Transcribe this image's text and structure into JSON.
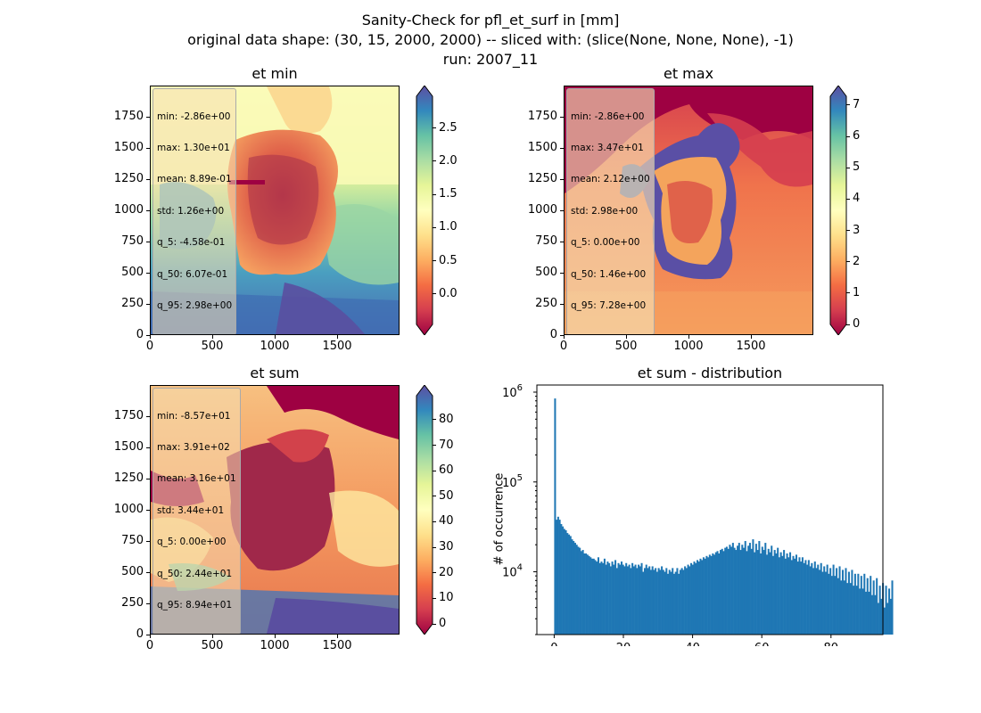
{
  "figure": {
    "title_line1": "Sanity-Check for pfl_et_surf in [mm]",
    "title_line2": "original data shape: (30, 15, 2000, 2000) -- sliced with: (slice(None, None, None), -1)",
    "title_line3": "run: 2007_11"
  },
  "panels": [
    {
      "title": "et min",
      "xticks": [
        "0",
        "500",
        "1000",
        "1500"
      ],
      "yticks": [
        "0",
        "250",
        "500",
        "750",
        "1000",
        "1250",
        "1500",
        "1750"
      ],
      "stats": [
        "min: -2.86e+00",
        "max: 1.30e+01",
        "mean: 8.89e-01",
        "std: 1.26e+00",
        "q_5: -4.58e-01",
        "q_50: 6.07e-01",
        "q_95: 2.98e+00"
      ],
      "cbar_ticks": [
        "0.0",
        "0.5",
        "1.0",
        "1.5",
        "2.0",
        "2.5"
      ]
    },
    {
      "title": "et max",
      "xticks": [
        "0",
        "500",
        "1000",
        "1500"
      ],
      "yticks": [
        "0",
        "250",
        "500",
        "750",
        "1000",
        "1250",
        "1500",
        "1750"
      ],
      "stats": [
        "min: -2.86e+00",
        "max: 3.47e+01",
        "mean: 2.12e+00",
        "std: 2.98e+00",
        "q_5: 0.00e+00",
        "q_50: 1.46e+00",
        "q_95: 7.28e+00"
      ],
      "cbar_ticks": [
        "0",
        "1",
        "2",
        "3",
        "4",
        "5",
        "6",
        "7"
      ]
    },
    {
      "title": "et sum",
      "xticks": [
        "0",
        "500",
        "1000",
        "1500"
      ],
      "yticks": [
        "0",
        "250",
        "500",
        "750",
        "1000",
        "1250",
        "1500",
        "1750"
      ],
      "stats": [
        "min: -8.57e+01",
        "max: 3.91e+02",
        "mean: 3.16e+01",
        "std: 3.44e+01",
        "q_5: 0.00e+00",
        "q_50: 2.44e+01",
        "q_95: 8.94e+01"
      ],
      "cbar_ticks": [
        "0",
        "10",
        "20",
        "30",
        "40",
        "50",
        "60",
        "70",
        "80"
      ]
    }
  ],
  "chart_data": [
    {
      "type": "heatmap",
      "title": "et min",
      "xlim": [
        0,
        2000
      ],
      "ylim": [
        0,
        2000
      ],
      "colorbar_range": [
        -0.458,
        2.98
      ],
      "colormap": "Spectral",
      "colorbar_extend": "both"
    },
    {
      "type": "heatmap",
      "title": "et max",
      "xlim": [
        0,
        2000
      ],
      "ylim": [
        0,
        2000
      ],
      "colorbar_range": [
        0,
        7.28
      ],
      "colormap": "Spectral",
      "colorbar_extend": "both"
    },
    {
      "type": "heatmap",
      "title": "et sum",
      "xlim": [
        0,
        2000
      ],
      "ylim": [
        0,
        2000
      ],
      "colorbar_range": [
        0,
        89.4
      ],
      "colormap": "Spectral",
      "colorbar_extend": "both"
    },
    {
      "type": "bar",
      "title": "et sum - distribution",
      "ylabel": "# of occurrence",
      "xlabel": "",
      "yscale": "log",
      "xlim": [
        -5,
        95
      ],
      "ylim": [
        2000,
        1200000
      ],
      "xticks": [
        "0",
        "20",
        "40",
        "60",
        "80"
      ],
      "yticks": [
        {
          "base": "10",
          "exp": "4",
          "value": 10000
        },
        {
          "base": "10",
          "exp": "5",
          "value": 100000
        },
        {
          "base": "10",
          "exp": "6",
          "value": 1000000
        }
      ],
      "bar_color": "#1f77b4",
      "bin_start": 0,
      "bin_width": 0.447,
      "values": [
        850000,
        38000,
        41000,
        38000,
        34000,
        32000,
        30000,
        29000,
        27000,
        26000,
        25000,
        23000,
        22000,
        21000,
        20000,
        19000,
        18500,
        17000,
        17500,
        16000,
        16000,
        15500,
        15000,
        14500,
        14000,
        14000,
        13500,
        13000,
        14500,
        12500,
        13000,
        12500,
        14000,
        12000,
        13000,
        12500,
        11500,
        13000,
        12000,
        13500,
        11000,
        12500,
        12000,
        13000,
        12000,
        11500,
        12500,
        11500,
        12000,
        11000,
        12500,
        11500,
        12000,
        11000,
        12000,
        11500,
        12500,
        10000,
        11000,
        12000,
        11000,
        11500,
        10500,
        11500,
        10500,
        11000,
        10000,
        11000,
        10500,
        11500,
        10500,
        10000,
        11000,
        9500,
        10500,
        10000,
        11000,
        9500,
        10000,
        11000,
        9500,
        10500,
        11000,
        10500,
        11500,
        11000,
        12000,
        11500,
        12500,
        12000,
        13000,
        12500,
        13500,
        13000,
        14000,
        13500,
        14500,
        14000,
        15000,
        14500,
        15500,
        15000,
        16000,
        15500,
        16500,
        17000,
        16000,
        17500,
        18000,
        17000,
        18500,
        19000,
        18000,
        20000,
        19000,
        21000,
        18500,
        17500,
        19500,
        21000,
        17500,
        20000,
        18500,
        22000,
        17000,
        19500,
        21000,
        18000,
        23000,
        16500,
        20500,
        17500,
        22000,
        16000,
        19000,
        17500,
        21000,
        15500,
        18000,
        16500,
        19500,
        15000,
        17500,
        16000,
        18500,
        14500,
        16500,
        15000,
        17500,
        14000,
        16000,
        14500,
        16500,
        13500,
        15000,
        14000,
        15500,
        13000,
        14500,
        13000,
        14500,
        12500,
        13500,
        12000,
        13500,
        11500,
        12500,
        11000,
        13000,
        11000,
        12000,
        10500,
        12500,
        10000,
        11500,
        10000,
        12000,
        9500,
        11000,
        9000,
        12000,
        9000,
        11000,
        8500,
        11500,
        8000,
        10500,
        8000,
        11000,
        7500,
        10000,
        7500,
        10500,
        7000,
        9500,
        7000,
        9500,
        6500,
        9000,
        6500,
        9500,
        6000,
        8500,
        6000,
        9000,
        5500,
        8000,
        5500,
        8500,
        4500,
        7000,
        5000,
        7500,
        4000,
        7000,
        4500,
        6500,
        5000,
        8000
      ]
    }
  ]
}
